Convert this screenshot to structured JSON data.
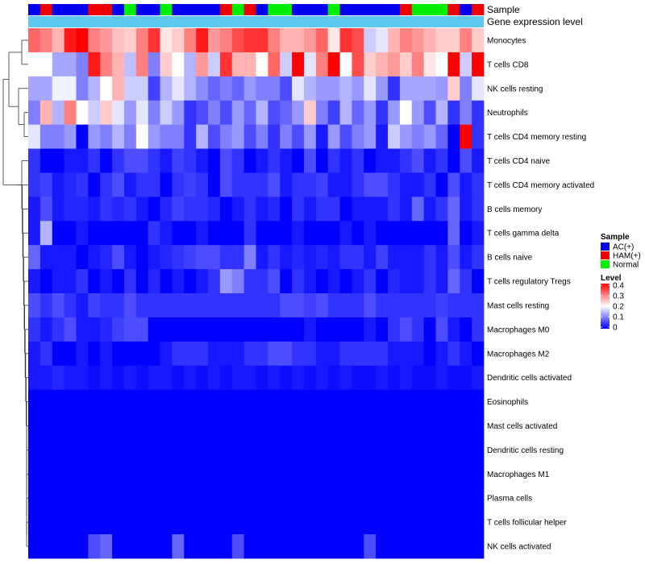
{
  "chart_data": {
    "type": "heatmap",
    "annotation_labels": [
      "Sample",
      "Gene expression level"
    ],
    "sample_groups": [
      "AC(+)",
      "HAM(+)",
      "AC(+)",
      "AC(+)",
      "AC(+)",
      "HAM(+)",
      "HAM(+)",
      "AC(+)",
      "Normal",
      "AC(+)",
      "AC(+)",
      "Normal",
      "AC(+)",
      "AC(+)",
      "AC(+)",
      "AC(+)",
      "HAM(+)",
      "Normal",
      "HAM(+)",
      "AC(+)",
      "Normal",
      "Normal",
      "AC(+)",
      "AC(+)",
      "AC(+)",
      "Normal",
      "AC(+)",
      "AC(+)",
      "AC(+)",
      "AC(+)",
      "AC(+)",
      "HAM(+)",
      "Normal",
      "Normal",
      "Normal",
      "HAM(+)",
      "AC(+)",
      "HAM(+)"
    ],
    "rows": [
      "Monocytes",
      "T cells CD8",
      "NK cells resting",
      "Neutrophils",
      "T cells CD4 memory resting",
      "T cells CD4 naive",
      "T cells CD4 memory activated",
      "B cells memory",
      "T cells gamma delta",
      "B cells naive",
      "T cells regulatory  Tregs",
      "Mast cells resting",
      "Macrophages M0",
      "Macrophages M2",
      "Dendritic cells activated",
      "Eosinophils",
      "Mast cells activated",
      "Dendritic cells resting",
      "Macrophages M1",
      "Plasma cells",
      "T cells follicular helper",
      "NK cells activated"
    ],
    "values": [
      [
        0.32,
        0.3,
        0.26,
        0.38,
        0.4,
        0.3,
        0.28,
        0.25,
        0.24,
        0.3,
        0.36,
        0.22,
        0.24,
        0.3,
        0.38,
        0.28,
        0.3,
        0.34,
        0.36,
        0.36,
        0.3,
        0.26,
        0.26,
        0.28,
        0.32,
        0.22,
        0.36,
        0.34,
        0.16,
        0.18,
        0.26,
        0.3,
        0.28,
        0.26,
        0.24,
        0.24,
        0.3,
        0.24
      ],
      [
        0.2,
        0.2,
        0.13,
        0.13,
        0.1,
        0.38,
        0.3,
        0.26,
        0.15,
        0.3,
        0.1,
        0.24,
        0.2,
        0.14,
        0.28,
        0.16,
        0.36,
        0.26,
        0.26,
        0.2,
        0.32,
        0.16,
        0.4,
        0.18,
        0.3,
        0.4,
        0.2,
        0.34,
        0.24,
        0.26,
        0.28,
        0.24,
        0.3,
        0.22,
        0.2,
        0.42,
        0.16,
        0.4
      ],
      [
        0.13,
        0.13,
        0.19,
        0.19,
        0.1,
        0.14,
        0.2,
        0.26,
        0.16,
        0.16,
        0.05,
        0.14,
        0.18,
        0.14,
        0.11,
        0.08,
        0.1,
        0.08,
        0.12,
        0.1,
        0.1,
        0.06,
        0.18,
        0.14,
        0.12,
        0.12,
        0.14,
        0.12,
        0.18,
        0.12,
        0.04,
        0.13,
        0.13,
        0.13,
        0.12,
        0.24,
        0.1,
        0.18
      ],
      [
        0.1,
        0.26,
        0.14,
        0.3,
        0.2,
        0.16,
        0.24,
        0.18,
        0.12,
        0.18,
        0.1,
        0.16,
        0.12,
        0.04,
        0.06,
        0.1,
        0.06,
        0.12,
        0.08,
        0.14,
        0.06,
        0.08,
        0.12,
        0.24,
        0.1,
        0.05,
        0.14,
        0.08,
        0.12,
        0.04,
        0.12,
        0.2,
        0.12,
        0.06,
        0.14,
        0.04,
        0.1,
        0.04
      ],
      [
        0.18,
        0.1,
        0.1,
        0.12,
        0.0,
        0.12,
        0.1,
        0.14,
        0.1,
        0.2,
        0.12,
        0.1,
        0.1,
        0.04,
        0.14,
        0.06,
        0.1,
        0.12,
        0.06,
        0.1,
        0.04,
        0.1,
        0.06,
        0.12,
        0.02,
        0.12,
        0.06,
        0.1,
        0.12,
        0.02,
        0.16,
        0.12,
        0.1,
        0.12,
        0.08,
        0.0,
        0.42,
        0.04
      ],
      [
        0.04,
        0.0,
        0.0,
        0.02,
        0.02,
        0.04,
        0.0,
        0.04,
        0.06,
        0.06,
        0.04,
        0.02,
        0.05,
        0.04,
        0.02,
        0.0,
        0.06,
        0.04,
        0.0,
        0.02,
        0.04,
        0.02,
        0.0,
        0.06,
        0.0,
        0.04,
        0.02,
        0.04,
        0.0,
        0.02,
        0.02,
        0.04,
        0.06,
        0.02,
        0.04,
        0.0,
        0.06,
        0.02
      ],
      [
        0.04,
        0.05,
        0.02,
        0.03,
        0.04,
        0.0,
        0.04,
        0.06,
        0.02,
        0.04,
        0.04,
        0.0,
        0.04,
        0.05,
        0.04,
        0.0,
        0.06,
        0.04,
        0.04,
        0.04,
        0.06,
        0.02,
        0.04,
        0.04,
        0.05,
        0.02,
        0.02,
        0.04,
        0.06,
        0.06,
        0.04,
        0.02,
        0.02,
        0.04,
        0.0,
        0.06,
        0.02,
        0.04
      ],
      [
        0.02,
        0.06,
        0.02,
        0.03,
        0.03,
        0.02,
        0.04,
        0.03,
        0.04,
        0.02,
        0.0,
        0.03,
        0.05,
        0.04,
        0.04,
        0.03,
        0.0,
        0.02,
        0.04,
        0.02,
        0.03,
        0.0,
        0.04,
        0.02,
        0.04,
        0.04,
        0.0,
        0.02,
        0.02,
        0.02,
        0.04,
        0.02,
        0.08,
        0.02,
        0.04,
        0.08,
        0.02,
        0.04
      ],
      [
        0.02,
        0.14,
        0.0,
        0.0,
        0.02,
        0.0,
        0.0,
        0.0,
        0.0,
        0.0,
        0.04,
        0.02,
        0.0,
        0.0,
        0.02,
        0.0,
        0.0,
        0.0,
        0.04,
        0.0,
        0.0,
        0.0,
        0.02,
        0.0,
        0.0,
        0.0,
        0.02,
        0.0,
        0.02,
        0.0,
        0.0,
        0.0,
        0.0,
        0.0,
        0.0,
        0.08,
        0.0,
        0.02
      ],
      [
        0.08,
        0.02,
        0.02,
        0.02,
        0.0,
        0.02,
        0.03,
        0.06,
        0.02,
        0.0,
        0.02,
        0.03,
        0.04,
        0.05,
        0.06,
        0.06,
        0.04,
        0.04,
        0.1,
        0.02,
        0.04,
        0.02,
        0.03,
        0.02,
        0.03,
        0.02,
        0.04,
        0.04,
        0.02,
        0.05,
        0.02,
        0.02,
        0.02,
        0.04,
        0.02,
        0.06,
        0.02,
        0.04
      ],
      [
        0.02,
        0.0,
        0.02,
        0.02,
        0.04,
        0.0,
        0.02,
        0.0,
        0.04,
        0.0,
        0.03,
        0.0,
        0.02,
        0.0,
        0.02,
        0.04,
        0.12,
        0.1,
        0.04,
        0.04,
        0.06,
        0.0,
        0.04,
        0.02,
        0.0,
        0.02,
        0.0,
        0.02,
        0.04,
        0.0,
        0.03,
        0.02,
        0.02,
        0.04,
        0.02,
        0.08,
        0.04,
        0.0
      ],
      [
        0.06,
        0.04,
        0.06,
        0.04,
        0.02,
        0.05,
        0.04,
        0.04,
        0.06,
        0.04,
        0.04,
        0.04,
        0.04,
        0.04,
        0.04,
        0.04,
        0.04,
        0.04,
        0.04,
        0.04,
        0.04,
        0.06,
        0.06,
        0.05,
        0.06,
        0.04,
        0.04,
        0.04,
        0.06,
        0.04,
        0.04,
        0.04,
        0.04,
        0.04,
        0.05,
        0.04,
        0.04,
        0.04
      ],
      [
        0.04,
        0.02,
        0.04,
        0.06,
        0.02,
        0.02,
        0.03,
        0.05,
        0.06,
        0.06,
        0.0,
        0.0,
        0.0,
        0.0,
        0.0,
        0.0,
        0.0,
        0.0,
        0.0,
        0.0,
        0.0,
        0.0,
        0.0,
        0.02,
        0.0,
        0.0,
        0.0,
        0.0,
        0.02,
        0.0,
        0.04,
        0.06,
        0.04,
        0.0,
        0.06,
        0.02,
        0.0,
        0.04
      ],
      [
        0.02,
        0.04,
        0.0,
        0.0,
        0.02,
        0.0,
        0.02,
        0.0,
        0.0,
        0.0,
        0.0,
        0.02,
        0.04,
        0.04,
        0.04,
        0.02,
        0.02,
        0.02,
        0.04,
        0.04,
        0.06,
        0.06,
        0.04,
        0.04,
        0.02,
        0.02,
        0.04,
        0.04,
        0.04,
        0.04,
        0.02,
        0.02,
        0.02,
        0.0,
        0.02,
        0.04,
        0.02,
        0.0
      ],
      [
        0.02,
        0.02,
        0.03,
        0.02,
        0.02,
        0.01,
        0.02,
        0.01,
        0.02,
        0.01,
        0.02,
        0.02,
        0.01,
        0.02,
        0.01,
        0.02,
        0.01,
        0.02,
        0.02,
        0.01,
        0.02,
        0.01,
        0.02,
        0.01,
        0.02,
        0.01,
        0.02,
        0.01,
        0.01,
        0.02,
        0.01,
        0.02,
        0.01,
        0.01,
        0.02,
        0.01,
        0.01,
        0.02
      ],
      [
        0,
        0,
        0,
        0,
        0,
        0,
        0,
        0,
        0,
        0,
        0,
        0,
        0,
        0,
        0,
        0,
        0,
        0,
        0,
        0,
        0,
        0,
        0,
        0,
        0,
        0,
        0,
        0,
        0,
        0,
        0,
        0,
        0,
        0,
        0,
        0,
        0,
        0
      ],
      [
        0,
        0,
        0,
        0,
        0,
        0,
        0,
        0,
        0,
        0,
        0,
        0,
        0,
        0,
        0,
        0,
        0,
        0,
        0,
        0,
        0,
        0,
        0,
        0,
        0,
        0,
        0,
        0,
        0,
        0,
        0,
        0,
        0,
        0,
        0,
        0,
        0,
        0
      ],
      [
        0,
        0,
        0,
        0,
        0,
        0,
        0,
        0,
        0,
        0,
        0,
        0,
        0,
        0,
        0,
        0,
        0,
        0,
        0,
        0,
        0,
        0,
        0,
        0,
        0,
        0,
        0,
        0,
        0,
        0,
        0,
        0,
        0,
        0,
        0,
        0,
        0,
        0
      ],
      [
        0,
        0,
        0,
        0,
        0,
        0,
        0,
        0,
        0,
        0,
        0,
        0,
        0,
        0,
        0,
        0,
        0,
        0,
        0,
        0,
        0,
        0,
        0,
        0,
        0,
        0,
        0,
        0,
        0,
        0,
        0,
        0,
        0,
        0,
        0,
        0,
        0,
        0
      ],
      [
        0,
        0,
        0,
        0,
        0,
        0,
        0,
        0,
        0,
        0,
        0,
        0,
        0,
        0,
        0,
        0,
        0,
        0,
        0,
        0,
        0,
        0,
        0,
        0,
        0,
        0,
        0,
        0,
        0,
        0,
        0,
        0,
        0,
        0,
        0,
        0,
        0,
        0
      ],
      [
        0,
        0,
        0,
        0,
        0,
        0,
        0,
        0,
        0,
        0,
        0,
        0,
        0,
        0,
        0,
        0,
        0,
        0,
        0,
        0,
        0,
        0,
        0,
        0,
        0,
        0,
        0,
        0,
        0,
        0,
        0,
        0,
        0,
        0,
        0,
        0,
        0,
        0
      ],
      [
        0,
        0,
        0,
        0,
        0,
        0.06,
        0.08,
        0,
        0,
        0,
        0,
        0,
        0.08,
        0,
        0,
        0,
        0,
        0.06,
        0,
        0,
        0,
        0,
        0,
        0,
        0,
        0,
        0,
        0,
        0.06,
        0,
        0,
        0,
        0,
        0,
        0,
        0,
        0,
        0
      ]
    ],
    "legend": {
      "sample_title": "Sample",
      "groups": [
        {
          "label": "AC(+)",
          "color": "#0000ee"
        },
        {
          "label": "HAM(+)",
          "color": "#ee0000"
        },
        {
          "label": "Normal",
          "color": "#00ee00"
        }
      ],
      "level_title": "Level",
      "level_ticks": [
        "0.4",
        "0.3",
        "0.2",
        "0.1",
        "0"
      ],
      "level_range": [
        0,
        0.4
      ]
    },
    "colors": {
      "low": "#0000ff",
      "mid": "#ffffff",
      "high": "#ff0000",
      "expression_bar": "#5ec8ee"
    }
  }
}
